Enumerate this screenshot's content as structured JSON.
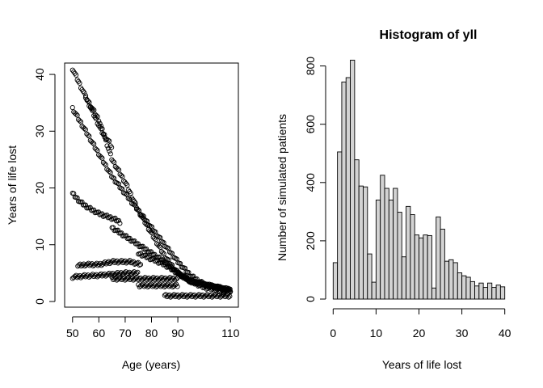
{
  "chart_data": [
    {
      "type": "scatter",
      "title": "",
      "xlabel": "Age (years)",
      "ylabel": "Years of life lost",
      "xlim": [
        47,
        113
      ],
      "ylim": [
        -1,
        42
      ],
      "x_ticks": [
        50,
        60,
        70,
        80,
        90,
        110
      ],
      "y_ticks": [
        0,
        10,
        20,
        30,
        40
      ],
      "marker": "open-circle",
      "bands": [
        {
          "x": [
            50,
            52,
            55,
            58,
            61,
            64,
            65
          ],
          "y": [
            41,
            39,
            36,
            33,
            30,
            28,
            27
          ]
        },
        {
          "x": [
            55,
            60,
            65,
            70,
            75,
            80,
            85,
            90,
            95,
            100,
            105,
            110
          ],
          "y": [
            36,
            32,
            25,
            21,
            16,
            12,
            8,
            5,
            3.5,
            2.5,
            2,
            1.5
          ]
        },
        {
          "x": [
            50,
            55,
            60,
            65,
            70,
            75,
            80,
            85,
            90,
            95,
            100,
            105,
            110
          ],
          "y": [
            34,
            30,
            26,
            22,
            19,
            16,
            13,
            10,
            7,
            4.5,
            3,
            2.5,
            2
          ]
        },
        {
          "x": [
            50,
            53,
            56,
            60,
            63,
            66,
            68
          ],
          "y": [
            19,
            17.5,
            16.5,
            15.5,
            15,
            14.5,
            14
          ]
        },
        {
          "x": [
            65,
            70,
            75,
            80,
            85,
            90,
            95,
            100,
            105,
            110
          ],
          "y": [
            13,
            11.5,
            10,
            8.5,
            7,
            5,
            3.5,
            3,
            2.5,
            2
          ]
        },
        {
          "x": [
            52,
            55,
            60,
            65,
            68,
            72,
            76
          ],
          "y": [
            6.3,
            6.5,
            6.5,
            7,
            7,
            7,
            6.5
          ]
        },
        {
          "x": [
            75,
            80,
            85,
            90,
            95,
            100,
            105,
            110
          ],
          "y": [
            8.5,
            7.5,
            6.5,
            5,
            3.5,
            3,
            2.5,
            2
          ]
        },
        {
          "x": [
            50,
            55,
            60,
            65,
            70,
            75
          ],
          "y": [
            4.3,
            4.5,
            4.6,
            4.8,
            5,
            5
          ]
        },
        {
          "x": [
            65,
            70,
            75,
            80,
            85,
            90
          ],
          "y": [
            4,
            4,
            4,
            4,
            4,
            4
          ]
        },
        {
          "x": [
            75,
            80,
            85,
            90
          ],
          "y": [
            2.8,
            2.8,
            2.8,
            2.8
          ]
        },
        {
          "x": [
            85,
            90,
            95,
            100,
            105,
            110
          ],
          "y": [
            1,
            1,
            1,
            1,
            1,
            1
          ]
        }
      ]
    },
    {
      "type": "bar",
      "title": "Histogram of yll",
      "xlabel": "Years of life lost",
      "ylabel": "Number of simulated patients",
      "xlim": [
        -1,
        41
      ],
      "ylim": [
        0,
        810
      ],
      "x_ticks": [
        0,
        10,
        20,
        30,
        40
      ],
      "y_ticks": [
        0,
        200,
        400,
        600,
        800
      ],
      "bin_start": 0,
      "bin_width": 1,
      "values": [
        125,
        505,
        745,
        760,
        820,
        478,
        388,
        385,
        155,
        58,
        340,
        425,
        380,
        340,
        380,
        298,
        145,
        318,
        290,
        220,
        210,
        220,
        218,
        38,
        282,
        240,
        130,
        135,
        125,
        90,
        80,
        75,
        60,
        45,
        55,
        40,
        55,
        40,
        48,
        42
      ]
    }
  ]
}
